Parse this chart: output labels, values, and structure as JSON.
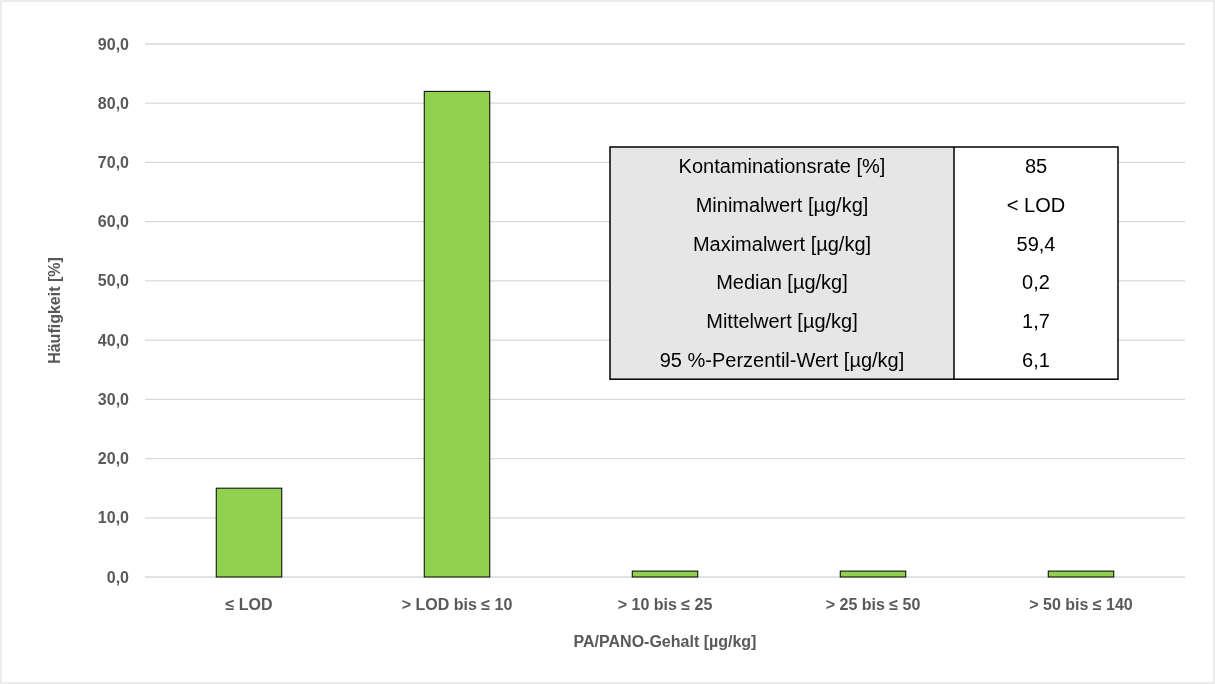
{
  "chart_data": {
    "type": "bar",
    "xlabel": "PA/PANO-Gehalt [µg/kg]",
    "ylabel": "Häufigkeit [%]",
    "categories": [
      "≤ LOD",
      "> LOD bis ≤ 10",
      "> 10 bis ≤ 25",
      "> 25 bis ≤ 50",
      "> 50 bis ≤ 140"
    ],
    "values": [
      15,
      82,
      1,
      1,
      1
    ],
    "color": "#92d050",
    "ylim": [
      0,
      90
    ],
    "yticks": [
      {
        "value": 0,
        "label": "0,0"
      },
      {
        "value": 10,
        "label": "10,0"
      },
      {
        "value": 20,
        "label": "20,0"
      },
      {
        "value": 30,
        "label": "30,0"
      },
      {
        "value": 40,
        "label": "40,0"
      },
      {
        "value": 50,
        "label": "50,0"
      },
      {
        "value": 60,
        "label": "60,0"
      },
      {
        "value": 70,
        "label": "70,0"
      },
      {
        "value": 80,
        "label": "80,0"
      },
      {
        "value": 90,
        "label": "90,0"
      }
    ],
    "grid": "y",
    "annotations": [
      "Kontaminationsrate [%]",
      "85",
      "Minimalwert [µg/kg]",
      "< LOD",
      "Maximalwert [µg/kg]",
      "59,4",
      "Median [µg/kg]",
      "0,2",
      "Mittelwert [µg/kg]",
      "1,7",
      "95 %-Perzentil-Wert [µg/kg]",
      "6,1"
    ]
  }
}
